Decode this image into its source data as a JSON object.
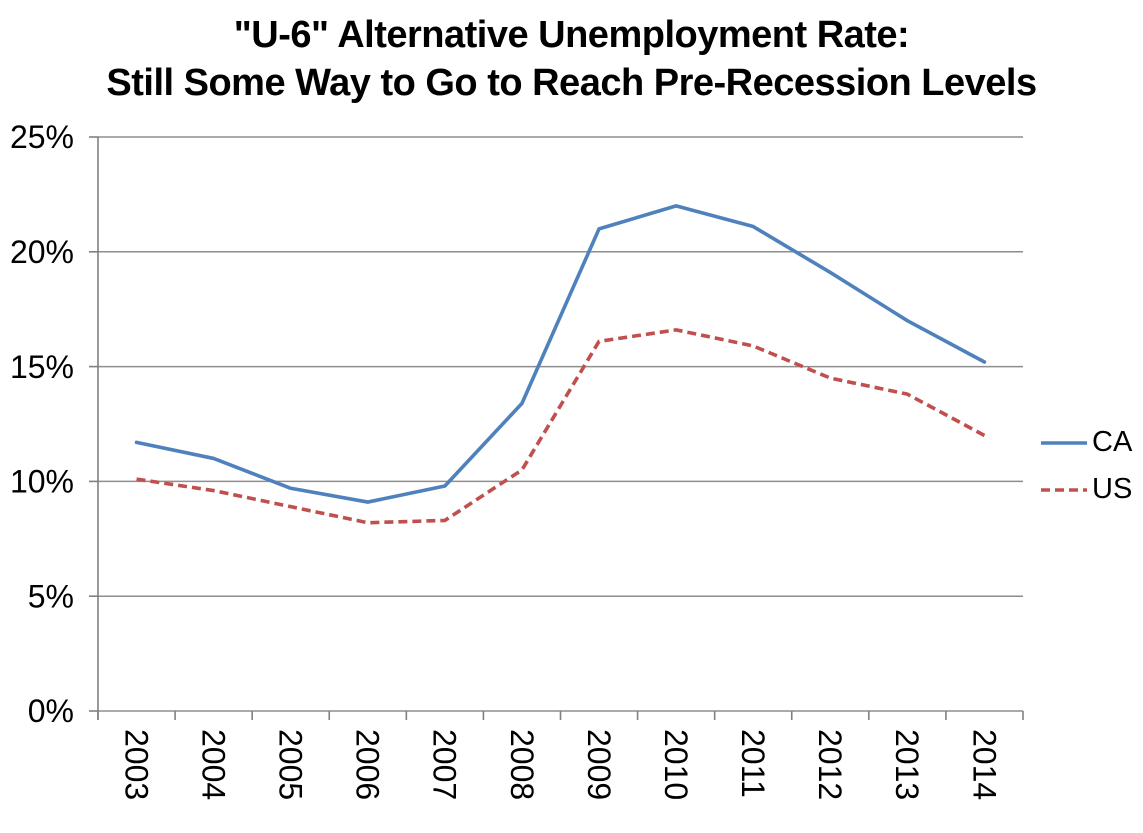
{
  "chart": {
    "title_line1": "\"U-6\" Alternative Unemployment Rate:",
    "title_line2": "Still Some Way to Go to Reach Pre-Recession Levels"
  },
  "chart_data": {
    "type": "line",
    "title": "\"U-6\" Alternative Unemployment Rate: Still Some Way to Go to Reach Pre-Recession Levels",
    "categories": [
      "2003",
      "2004",
      "2005",
      "2006",
      "2007",
      "2008",
      "2009",
      "2010",
      "2011",
      "2012",
      "2013",
      "2014"
    ],
    "series": [
      {
        "name": "CA",
        "style": "solid",
        "color": "#4F81BD",
        "values": [
          11.7,
          11.0,
          9.7,
          9.1,
          9.8,
          13.4,
          21.0,
          22.0,
          21.1,
          19.1,
          17.0,
          15.2
        ]
      },
      {
        "name": "US",
        "style": "dashed",
        "color": "#C0504D",
        "values": [
          10.1,
          9.6,
          8.9,
          8.2,
          8.3,
          10.5,
          16.1,
          16.6,
          15.9,
          14.5,
          13.8,
          12.0
        ]
      }
    ],
    "xlabel": "",
    "ylabel": "",
    "ylim": [
      0,
      25
    ],
    "y_ticks": [
      {
        "value": 0,
        "label": "0%"
      },
      {
        "value": 5,
        "label": "5%"
      },
      {
        "value": 10,
        "label": "10%"
      },
      {
        "value": 15,
        "label": "15%"
      },
      {
        "value": 20,
        "label": "20%"
      },
      {
        "value": 25,
        "label": "25%"
      }
    ],
    "grid": true,
    "legend_position": "right",
    "legend": [
      "CA",
      "US"
    ],
    "x_label_rotation_deg": 90
  },
  "colors": {
    "grid": "#8e8e8e",
    "axis": "#808080",
    "text": "#000000",
    "background": "#ffffff"
  }
}
